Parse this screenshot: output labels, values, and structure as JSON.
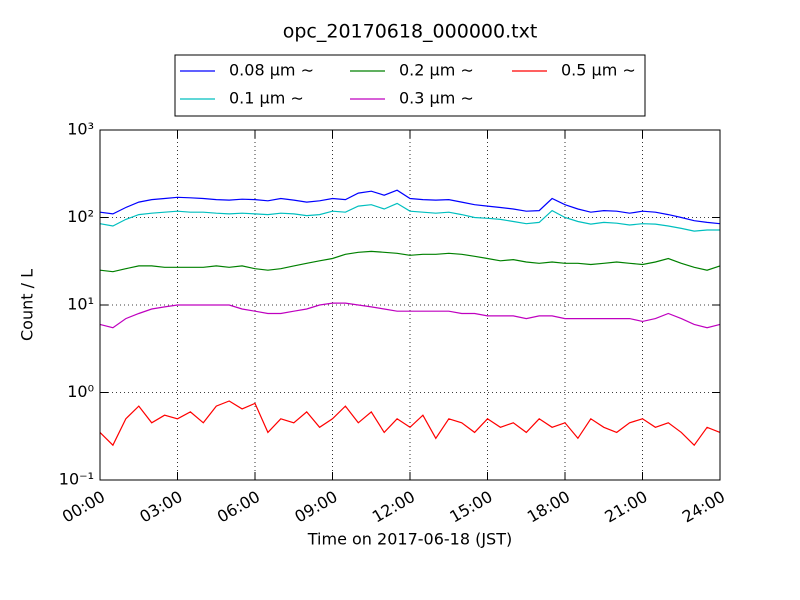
{
  "chart_data": {
    "type": "line",
    "title": "opc_20170618_000000.txt",
    "xlabel": "Time on 2017-06-18 (JST)",
    "ylabel": "Count / L",
    "log_y": true,
    "grid": true,
    "legend": "top",
    "xlim": [
      0,
      24
    ],
    "xticks": [
      {
        "value": 0,
        "label": "00:00"
      },
      {
        "value": 3,
        "label": "03:00"
      },
      {
        "value": 6,
        "label": "06:00"
      },
      {
        "value": 9,
        "label": "09:00"
      },
      {
        "value": 12,
        "label": "12:00"
      },
      {
        "value": 15,
        "label": "15:00"
      },
      {
        "value": 18,
        "label": "18:00"
      },
      {
        "value": 21,
        "label": "21:00"
      },
      {
        "value": 24,
        "label": "24:00"
      }
    ],
    "ylim": [
      0.1,
      1000
    ],
    "yticks": [
      {
        "value": 0.1,
        "label": "10⁻¹"
      },
      {
        "value": 1,
        "label": "10⁰"
      },
      {
        "value": 10,
        "label": "10¹"
      },
      {
        "value": 100,
        "label": "10²"
      },
      {
        "value": 1000,
        "label": "10³"
      }
    ],
    "x": [
      0,
      0.5,
      1,
      1.5,
      2,
      2.5,
      3,
      3.5,
      4,
      4.5,
      5,
      5.5,
      6,
      6.5,
      7,
      7.5,
      8,
      8.5,
      9,
      9.5,
      10,
      10.5,
      11,
      11.5,
      12,
      12.5,
      13,
      13.5,
      14,
      14.5,
      15,
      15.5,
      16,
      16.5,
      17,
      17.5,
      18,
      18.5,
      19,
      19.5,
      20,
      20.5,
      21,
      21.5,
      22,
      22.5,
      23,
      23.5,
      24
    ],
    "series": [
      {
        "name": "0.08 μm ∼",
        "color": "#0000ff",
        "values": [
          115,
          110,
          130,
          150,
          160,
          165,
          170,
          168,
          165,
          160,
          158,
          162,
          160,
          155,
          165,
          158,
          150,
          155,
          165,
          160,
          190,
          200,
          180,
          205,
          165,
          160,
          158,
          160,
          150,
          140,
          135,
          130,
          125,
          118,
          120,
          165,
          140,
          125,
          115,
          120,
          118,
          112,
          118,
          115,
          108,
          100,
          92,
          88,
          85
        ]
      },
      {
        "name": "0.1 μm ∼",
        "color": "#00bfbf",
        "values": [
          85,
          80,
          95,
          108,
          112,
          115,
          118,
          115,
          115,
          112,
          110,
          112,
          110,
          108,
          112,
          110,
          105,
          108,
          118,
          115,
          135,
          140,
          125,
          145,
          118,
          115,
          112,
          115,
          108,
          100,
          98,
          95,
          90,
          85,
          88,
          120,
          100,
          90,
          84,
          88,
          86,
          82,
          85,
          84,
          80,
          75,
          70,
          72,
          72
        ]
      },
      {
        "name": "0.2 μm ∼",
        "color": "#008000",
        "values": [
          25,
          24,
          26,
          28,
          28,
          27,
          27,
          27,
          27,
          28,
          27,
          28,
          26,
          25,
          26,
          28,
          30,
          32,
          34,
          38,
          40,
          41,
          40,
          39,
          37,
          38,
          38,
          39,
          38,
          36,
          34,
          32,
          33,
          31,
          30,
          31,
          30,
          30,
          29,
          30,
          31,
          30,
          29,
          31,
          34,
          30,
          27,
          25,
          28
        ]
      },
      {
        "name": "0.3 μm ∼",
        "color": "#bf00bf",
        "values": [
          6,
          5.5,
          7,
          8,
          9,
          9.5,
          10,
          10,
          10,
          10,
          10,
          9,
          8.5,
          8,
          8,
          8.5,
          9,
          10,
          10.5,
          10.5,
          10,
          9.5,
          9,
          8.5,
          8.5,
          8.5,
          8.5,
          8.5,
          8,
          8,
          7.5,
          7.5,
          7.5,
          7,
          7.5,
          7.5,
          7,
          7,
          7,
          7,
          7,
          7,
          6.5,
          7,
          8,
          7,
          6,
          5.5,
          6
        ]
      },
      {
        "name": "0.5 μm ∼",
        "color": "#ff0000",
        "values": [
          0.35,
          0.25,
          0.5,
          0.7,
          0.45,
          0.55,
          0.5,
          0.6,
          0.45,
          0.7,
          0.8,
          0.65,
          0.75,
          0.35,
          0.5,
          0.45,
          0.6,
          0.4,
          0.5,
          0.7,
          0.45,
          0.6,
          0.35,
          0.5,
          0.4,
          0.55,
          0.3,
          0.5,
          0.45,
          0.35,
          0.5,
          0.4,
          0.45,
          0.35,
          0.5,
          0.4,
          0.45,
          0.3,
          0.5,
          0.4,
          0.35,
          0.45,
          0.5,
          0.4,
          0.45,
          0.35,
          0.25,
          0.4,
          0.35
        ]
      }
    ]
  }
}
